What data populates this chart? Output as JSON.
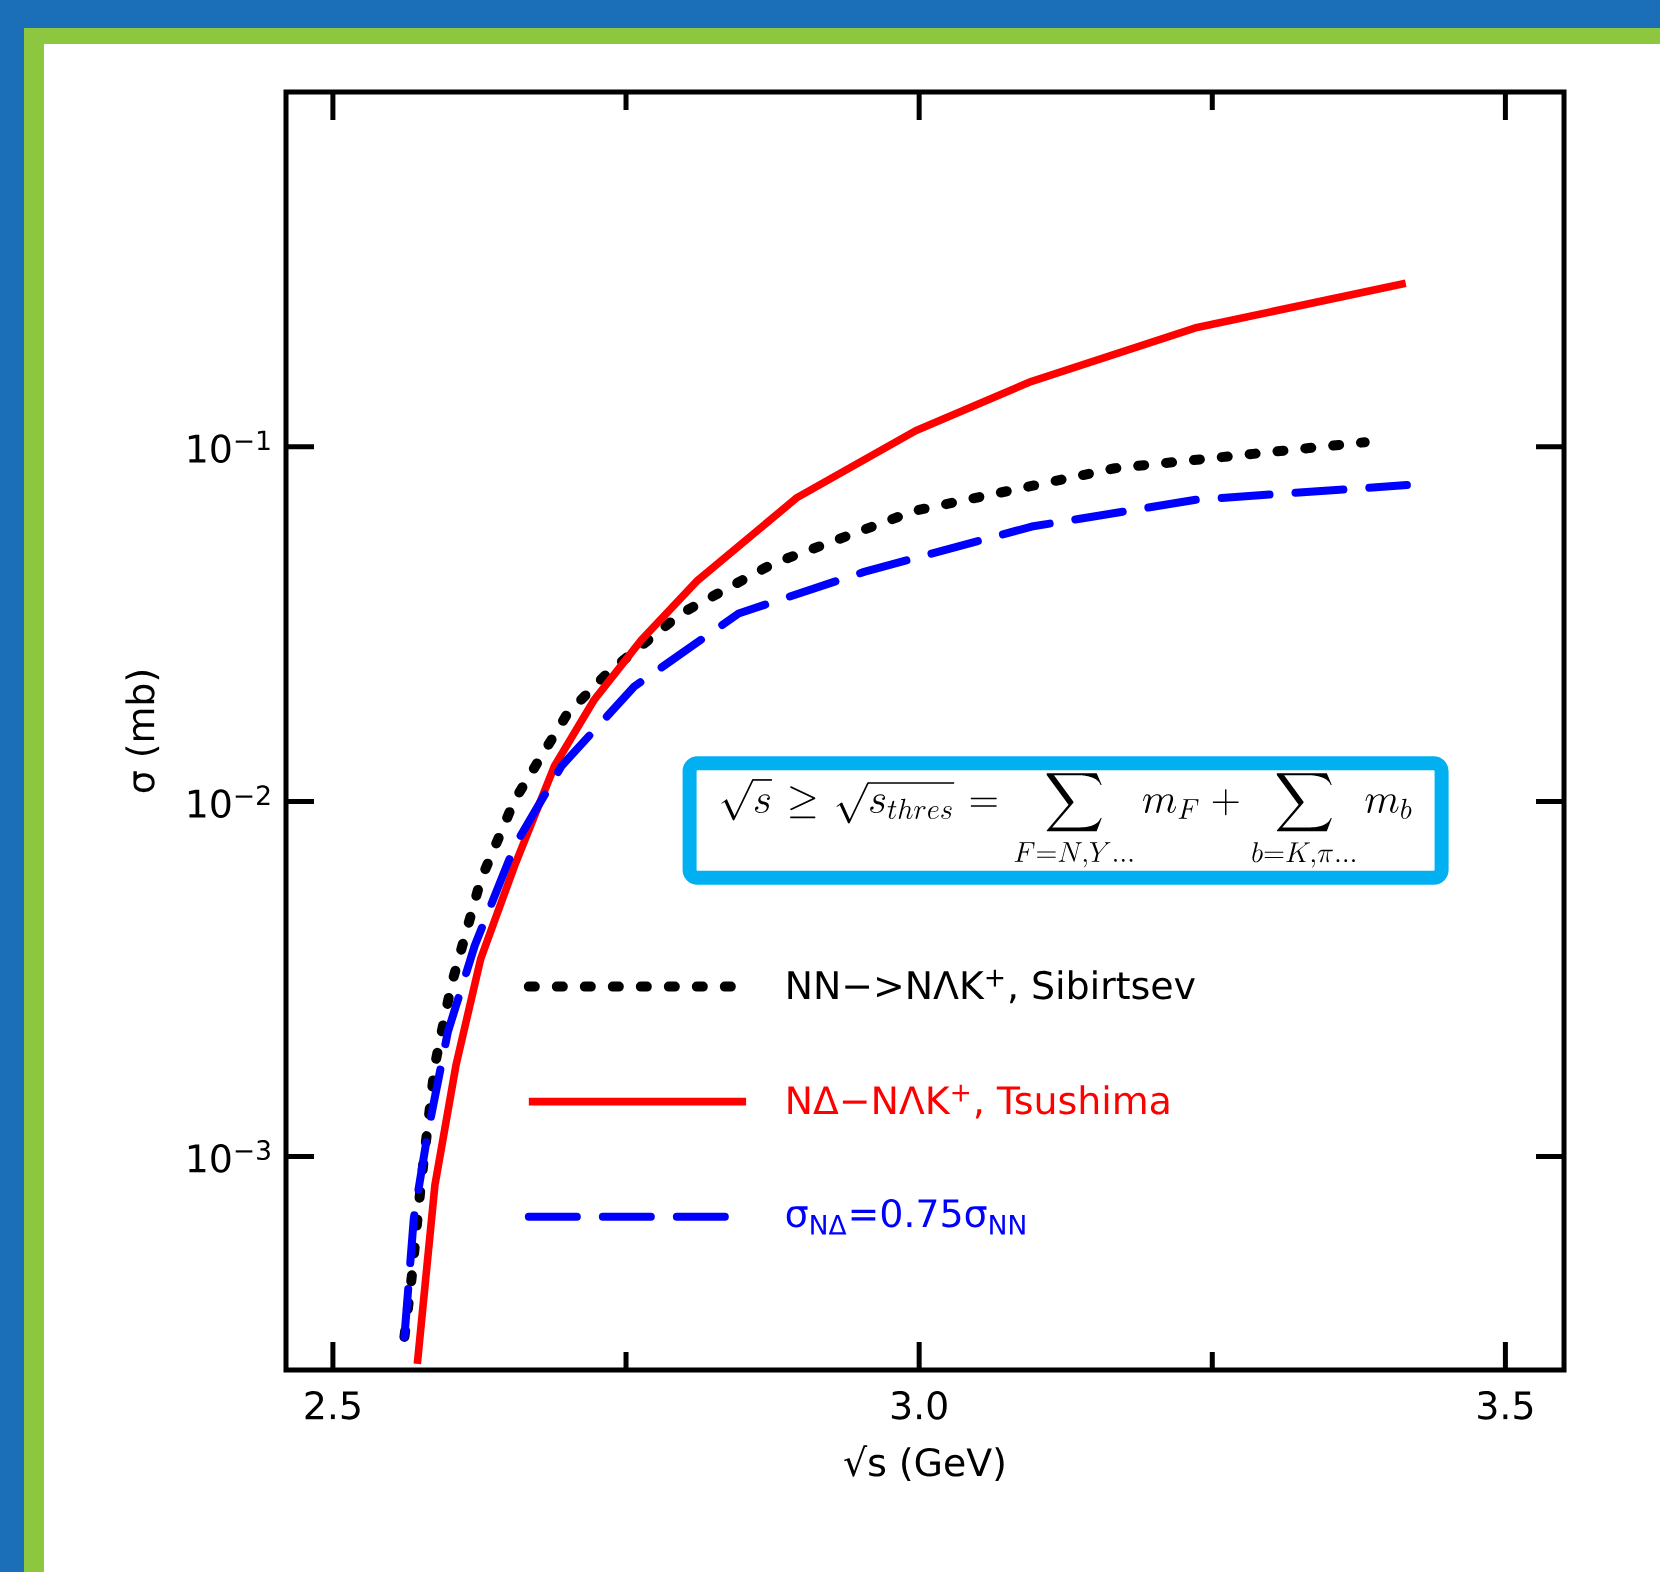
{
  "chart_data": {
    "type": "line",
    "xlabel": "√s (GeV)",
    "ylabel": "σ (mb)",
    "log": "y",
    "xlim": [
      2.46,
      3.55
    ],
    "ylim": [
      0.00025,
      1
    ],
    "xticks": [
      {
        "value": 2.5,
        "label": "2.5"
      },
      {
        "value": 2.75,
        "label": null
      },
      {
        "value": 3.0,
        "label": "3.0"
      },
      {
        "value": 3.25,
        "label": null
      },
      {
        "value": 3.5,
        "label": "3.5"
      }
    ],
    "yticks": [
      {
        "value": 0.001,
        "label": "10$^{−3}$"
      },
      {
        "value": 0.01,
        "label": "10$^{−2}$"
      },
      {
        "value": 0.1,
        "label": "10$^{−1}$"
      }
    ],
    "grid": false,
    "legend": "bottom right",
    "marker": "none",
    "annotations": [
      "\\sqrt{s} \\geq \\sqrt{s_{thres}} = \\sum_{F=N,Y\\ldots} m_F + \\sum_{b=K,\\pi\\ldots} m_b"
    ],
    "series": [
      {
        "name": "NN−>NΛK$^{+}$, Sibirtsev",
        "color": "#000000",
        "line_style": "dotted",
        "x": [
          2.561,
          2.567,
          2.575,
          2.587,
          2.601,
          2.626,
          2.655,
          2.7,
          2.734,
          2.797,
          2.875,
          2.996,
          3.167,
          3.38
        ],
        "values": [
          0.00031,
          0.00045,
          0.00083,
          0.00181,
          0.00304,
          0.006,
          0.0101,
          0.0177,
          0.023,
          0.0339,
          0.0468,
          0.066,
          0.087,
          0.103
        ]
      },
      {
        "name": "NΔ−NΛK$^{+}$, Tsushima",
        "color": "#ff0000",
        "line_style": "solid",
        "x": [
          2.572,
          2.587,
          2.605,
          2.626,
          2.655,
          2.689,
          2.723,
          2.763,
          2.811,
          2.896,
          2.997,
          3.096,
          3.237,
          3.415
        ],
        "values": [
          0.00026,
          0.00083,
          0.00181,
          0.0036,
          0.0066,
          0.0126,
          0.0194,
          0.0285,
          0.042,
          0.072,
          0.111,
          0.153,
          0.217,
          0.289
        ]
      },
      {
        "name": "σ$_{NΔ}$=0.75σ$_{NN}$",
        "color": "#0000ff",
        "line_style": "dashed",
        "x": [
          2.561,
          2.569,
          2.581,
          2.598,
          2.621,
          2.655,
          2.695,
          2.757,
          2.846,
          2.953,
          3.096,
          3.237,
          3.416
        ],
        "values": [
          0.00031,
          0.00067,
          0.00117,
          0.00224,
          0.00393,
          0.0075,
          0.0126,
          0.0211,
          0.0339,
          0.0444,
          0.0596,
          0.071,
          0.078
        ]
      }
    ]
  }
}
